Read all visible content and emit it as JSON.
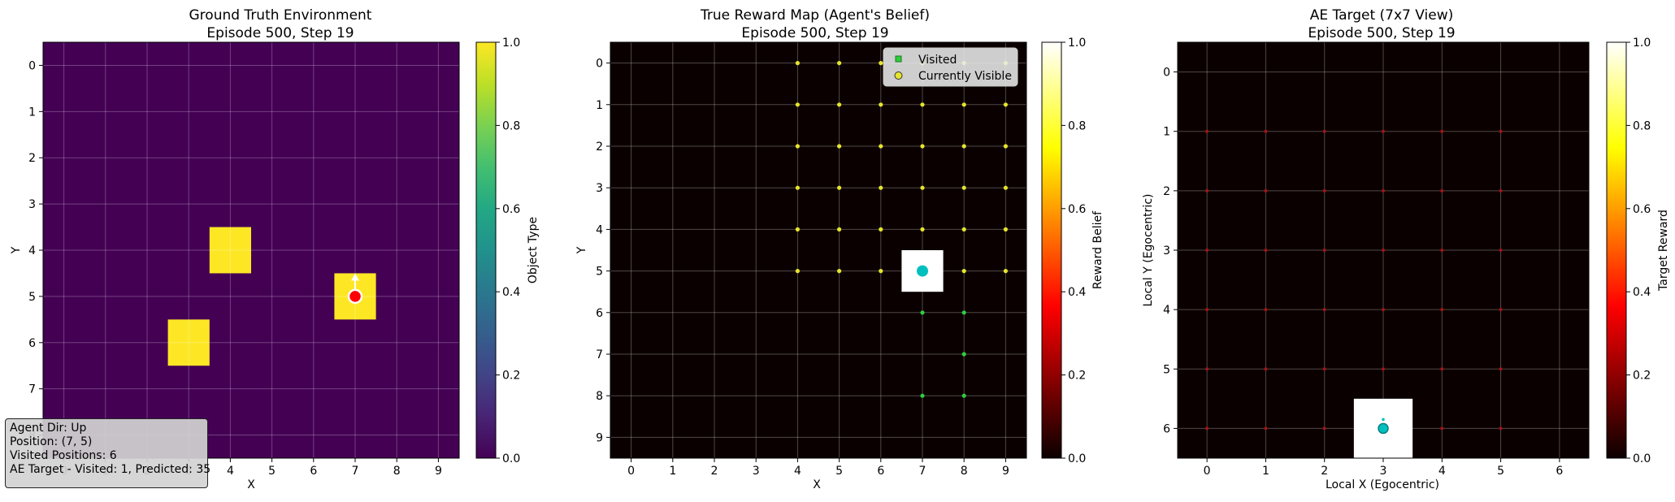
{
  "info": {
    "agent_dir": "Agent Dir: Up",
    "position": "Position: (7, 5)",
    "visited": "Visited Positions: 6",
    "ae_target": "AE Target - Visited: 1, Predicted: 35"
  },
  "chart_data": [
    {
      "type": "heatmap",
      "title": "Ground Truth Environment",
      "subtitle": "Episode 500, Step 19",
      "xlabel": "X",
      "ylabel": "Y",
      "x_ticks": [
        "0",
        "1",
        "2",
        "3",
        "4",
        "5",
        "6",
        "7",
        "8",
        "9"
      ],
      "y_ticks": [
        "0",
        "1",
        "2",
        "3",
        "4",
        "5",
        "6",
        "7",
        "8"
      ],
      "xlim": [
        -0.5,
        9.5
      ],
      "ylim": [
        8.5,
        -0.5
      ],
      "colormap": "viridis",
      "colorbar_label": "Object Type",
      "colorbar_ticks": [
        "0.0",
        "0.2",
        "0.4",
        "0.6",
        "0.8",
        "1.0"
      ],
      "cells": [
        {
          "x": 4,
          "y": 4,
          "value": 1.0
        },
        {
          "x": 7,
          "y": 5,
          "value": 1.0
        },
        {
          "x": 3,
          "y": 6,
          "value": 1.0
        }
      ],
      "background_value": 0.0,
      "agent": {
        "x": 7,
        "y": 5,
        "direction": "Up",
        "color": "#ff0000"
      },
      "grid": true
    },
    {
      "type": "heatmap",
      "title": "True Reward Map (Agent's Belief)",
      "subtitle": "Episode 500, Step 19",
      "xlabel": "X",
      "ylabel": "Y",
      "x_ticks": [
        "0",
        "1",
        "2",
        "3",
        "4",
        "5",
        "6",
        "7",
        "8",
        "9"
      ],
      "y_ticks": [
        "0",
        "1",
        "2",
        "3",
        "4",
        "5",
        "6",
        "7",
        "8",
        "9"
      ],
      "xlim": [
        -0.5,
        9.5
      ],
      "ylim": [
        9.5,
        -0.5
      ],
      "colormap": "hot",
      "colorbar_label": "Reward Belief",
      "colorbar_ticks": [
        "0.0",
        "0.2",
        "0.4",
        "0.6",
        "0.8",
        "1.0"
      ],
      "cells": [
        {
          "x": 7,
          "y": 5,
          "value": 1.0
        }
      ],
      "background_value": 0.0,
      "legend": {
        "position": "upper right",
        "entries": [
          "Visited",
          "Currently Visible"
        ]
      },
      "visited": [
        [
          7,
          5
        ],
        [
          7,
          6
        ],
        [
          8,
          6
        ],
        [
          8,
          7
        ],
        [
          7,
          8
        ],
        [
          8,
          8
        ]
      ],
      "visible": [
        [
          4,
          0
        ],
        [
          5,
          0
        ],
        [
          6,
          0
        ],
        [
          7,
          0
        ],
        [
          8,
          0
        ],
        [
          9,
          0
        ],
        [
          4,
          1
        ],
        [
          5,
          1
        ],
        [
          6,
          1
        ],
        [
          7,
          1
        ],
        [
          8,
          1
        ],
        [
          9,
          1
        ],
        [
          4,
          2
        ],
        [
          5,
          2
        ],
        [
          6,
          2
        ],
        [
          7,
          2
        ],
        [
          8,
          2
        ],
        [
          9,
          2
        ],
        [
          4,
          3
        ],
        [
          5,
          3
        ],
        [
          6,
          3
        ],
        [
          7,
          3
        ],
        [
          8,
          3
        ],
        [
          9,
          3
        ],
        [
          4,
          4
        ],
        [
          5,
          4
        ],
        [
          6,
          4
        ],
        [
          7,
          4
        ],
        [
          8,
          4
        ],
        [
          9,
          4
        ],
        [
          4,
          5
        ],
        [
          5,
          5
        ],
        [
          6,
          5
        ],
        [
          7,
          5
        ],
        [
          8,
          5
        ],
        [
          9,
          5
        ]
      ],
      "agent": {
        "x": 7,
        "y": 5,
        "color": "#00bfbf"
      },
      "grid": true
    },
    {
      "type": "heatmap",
      "title": "AE Target (7x7 View)",
      "subtitle": "Episode 500, Step 19",
      "xlabel": "Local X (Egocentric)",
      "ylabel": "Local Y (Egocentric)",
      "x_ticks": [
        "0",
        "1",
        "2",
        "3",
        "4",
        "5",
        "6"
      ],
      "y_ticks": [
        "0",
        "1",
        "2",
        "3",
        "4",
        "5",
        "6"
      ],
      "xlim": [
        -0.5,
        6.5
      ],
      "ylim": [
        6.5,
        -0.5
      ],
      "colormap": "hot",
      "colorbar_label": "Target Reward",
      "colorbar_ticks": [
        "0.0",
        "0.2",
        "0.4",
        "0.6",
        "0.8",
        "1.0"
      ],
      "cells": [
        {
          "x": 3,
          "y": 6,
          "value": 1.0
        }
      ],
      "background_value": 0.0,
      "predicted_points": [
        [
          0,
          1
        ],
        [
          1,
          1
        ],
        [
          2,
          1
        ],
        [
          3,
          1
        ],
        [
          4,
          1
        ],
        [
          5,
          1
        ],
        [
          0,
          2
        ],
        [
          1,
          2
        ],
        [
          2,
          2
        ],
        [
          3,
          2
        ],
        [
          4,
          2
        ],
        [
          5,
          2
        ],
        [
          0,
          3
        ],
        [
          1,
          3
        ],
        [
          2,
          3
        ],
        [
          3,
          3
        ],
        [
          4,
          3
        ],
        [
          5,
          3
        ],
        [
          0,
          4
        ],
        [
          1,
          4
        ],
        [
          2,
          4
        ],
        [
          3,
          4
        ],
        [
          4,
          4
        ],
        [
          5,
          4
        ],
        [
          0,
          5
        ],
        [
          1,
          5
        ],
        [
          2,
          5
        ],
        [
          3,
          5
        ],
        [
          4,
          5
        ],
        [
          5,
          5
        ],
        [
          0,
          6
        ],
        [
          1,
          6
        ],
        [
          2,
          6
        ],
        [
          4,
          6
        ],
        [
          5,
          6
        ]
      ],
      "agent": {
        "x": 3,
        "y": 6,
        "color": "#00bfbf"
      },
      "grid": true
    }
  ]
}
